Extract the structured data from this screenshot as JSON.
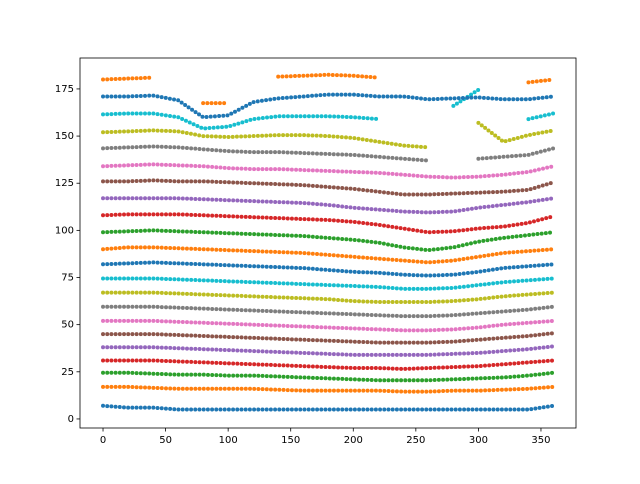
{
  "chart_data": {
    "type": "line",
    "x": [
      0,
      20,
      40,
      60,
      80,
      100,
      120,
      140,
      160,
      180,
      200,
      220,
      240,
      260,
      280,
      300,
      320,
      340,
      360
    ],
    "xlim": [
      -18.4,
      378
    ],
    "xticks": [
      0,
      50,
      100,
      150,
      200,
      250,
      300,
      350
    ],
    "ylim": [
      -4.8,
      191.4
    ],
    "yticks": [
      0,
      25,
      50,
      75,
      100,
      125,
      150,
      175
    ],
    "series": [
      {
        "color": "#1f77b4",
        "values": [
          7,
          6,
          6,
          5,
          5,
          5,
          5,
          5,
          5,
          5,
          5,
          5,
          5,
          5,
          5,
          5,
          5,
          5,
          7
        ]
      },
      {
        "color": "#ff7f0e",
        "values": [
          17,
          17,
          16.5,
          16,
          16,
          16,
          16,
          15.5,
          15,
          15,
          15,
          15,
          14.5,
          14.5,
          15,
          15,
          15.5,
          16,
          17
        ]
      },
      {
        "color": "#2ca02c",
        "values": [
          24.5,
          24.5,
          24,
          23.5,
          23.5,
          23,
          23,
          22.5,
          22,
          21.5,
          21,
          20.5,
          20.5,
          20.5,
          21,
          21.5,
          22,
          23,
          24.5
        ]
      },
      {
        "color": "#d62728",
        "values": [
          31,
          31,
          31,
          30.5,
          30,
          29.5,
          29,
          28.5,
          28,
          27.5,
          27,
          27,
          26.5,
          27,
          27.5,
          28,
          29,
          30,
          31
        ]
      },
      {
        "color": "#9467bd",
        "values": [
          38,
          38,
          38,
          37.5,
          37,
          36.5,
          36,
          35.5,
          35,
          34.5,
          34,
          34,
          34,
          34,
          34.5,
          35,
          36,
          37,
          38.5
        ]
      },
      {
        "color": "#8c564b",
        "values": [
          45,
          45,
          45,
          44.5,
          44,
          43.5,
          43,
          42.5,
          42,
          41.5,
          41,
          40.5,
          40.5,
          40.5,
          41,
          42,
          43,
          44,
          45.5
        ]
      },
      {
        "color": "#e377c2",
        "values": [
          52,
          52,
          52,
          51.5,
          51,
          50.5,
          50,
          49.5,
          49,
          48.5,
          48,
          47.5,
          47,
          47,
          47.5,
          48.5,
          50,
          51,
          52
        ]
      },
      {
        "color": "#7f7f7f",
        "values": [
          59.5,
          59.5,
          59.5,
          59,
          58.5,
          58,
          57.5,
          57,
          56.5,
          56,
          55.5,
          55,
          54.5,
          54.5,
          55,
          56,
          57,
          58,
          59.5
        ]
      },
      {
        "color": "#bcbd22",
        "values": [
          67,
          67,
          67,
          66.5,
          66,
          65.5,
          65,
          64.5,
          64,
          63.5,
          62.5,
          62,
          62,
          62,
          62.5,
          63.5,
          65,
          66,
          67
        ]
      },
      {
        "color": "#17becf",
        "values": [
          74.5,
          74.5,
          74.5,
          74,
          73.5,
          73,
          72.5,
          72,
          71.5,
          71,
          70.5,
          70,
          69,
          69,
          69.5,
          71,
          72.5,
          73.5,
          74.5
        ]
      },
      {
        "color": "#1f77b4",
        "values": [
          82,
          82.5,
          83,
          82.5,
          82,
          81.5,
          81,
          80.5,
          80,
          79,
          78,
          77.5,
          76.5,
          76,
          76.5,
          78,
          80,
          81,
          82
        ]
      },
      {
        "color": "#ff7f0e",
        "values": [
          90,
          91,
          91,
          90.5,
          90,
          89.5,
          89,
          88.5,
          88,
          87,
          86,
          85,
          84,
          83,
          84,
          86,
          88,
          89,
          90
        ]
      },
      {
        "color": "#2ca02c",
        "values": [
          99,
          99.5,
          100,
          99.5,
          99,
          98.5,
          98,
          97.5,
          97,
          96,
          95,
          93.5,
          91,
          89.5,
          91,
          94,
          96,
          97.5,
          99
        ]
      },
      {
        "color": "#d62728",
        "values": [
          108,
          108.5,
          108.5,
          108.5,
          108,
          107.5,
          107,
          106.5,
          106,
          105.5,
          104.5,
          103,
          101,
          99,
          99.5,
          101,
          102,
          104,
          107.5
        ]
      },
      {
        "color": "#9467bd",
        "values": [
          117,
          117,
          117,
          117,
          116.5,
          116,
          115.5,
          115,
          114.5,
          113.5,
          112,
          111,
          110,
          109.5,
          110,
          112,
          113.5,
          115,
          117
        ]
      },
      {
        "color": "#8c564b",
        "values": [
          126,
          126,
          126.5,
          126,
          126,
          125.5,
          125,
          124.5,
          124,
          123,
          122,
          120.5,
          119,
          119,
          119.5,
          120,
          120.5,
          121.5,
          125.5
        ]
      },
      {
        "color": "#e377c2",
        "values": [
          134,
          134.5,
          135,
          134.5,
          134,
          133,
          132.5,
          132.5,
          132,
          131.5,
          131,
          130.5,
          129.5,
          128.5,
          128,
          128.5,
          129.5,
          131,
          134
        ]
      },
      {
        "color": "#7f7f7f",
        "values": [
          143.5,
          144,
          144.5,
          144,
          143,
          142,
          141.5,
          141.5,
          141,
          140.5,
          140,
          139,
          138,
          137,
          null,
          138,
          139,
          140,
          143.5
        ]
      },
      {
        "color": "#bcbd22",
        "values": [
          152,
          152.5,
          153,
          152.5,
          150,
          149.5,
          150,
          150.5,
          150.5,
          150,
          149,
          147,
          145,
          144,
          null,
          157,
          147,
          150.5,
          153
        ]
      },
      {
        "color": "#17becf",
        "values": [
          161.5,
          162,
          162,
          160,
          154,
          155,
          159,
          160.5,
          160.5,
          160.5,
          160,
          159,
          null,
          null,
          166,
          174.5,
          null,
          159,
          162
        ]
      },
      {
        "color": "#1f77b4",
        "values": [
          171,
          171,
          171.5,
          169,
          160,
          161,
          168,
          170,
          171,
          172,
          172,
          171,
          171,
          169.5,
          170,
          170.5,
          169.5,
          169.5,
          171
        ]
      },
      {
        "color": "#ff7f0e",
        "values": [
          180,
          180.5,
          181,
          null,
          167.5,
          167.5,
          null,
          181.5,
          182,
          182.5,
          182,
          181,
          null,
          null,
          null,
          null,
          null,
          178.5,
          180
        ]
      }
    ]
  }
}
